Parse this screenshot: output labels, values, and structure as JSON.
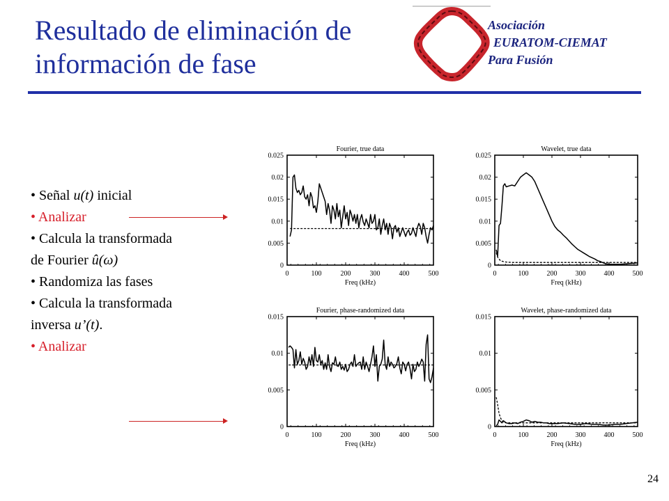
{
  "slide": {
    "title_line1": "Resultado de eliminación de",
    "title_line2": "información de fase",
    "org_line1": "Asociación",
    "org_line2": "EURATOM-CIEMAT",
    "org_line3": "Para Fusión",
    "page_number": "24",
    "colors": {
      "title": "#1f2f9c",
      "rule": "#1f2fa8",
      "highlight": "#d61f2a",
      "logo": "#c8252c"
    },
    "logo_icon": "euratom-ciemat-logo-icon",
    "arrow_icon": "right-arrow-icon"
  },
  "bullets": [
    {
      "pre": "• Señal ",
      "em": "u(t)",
      "post": " inicial",
      "red": false
    },
    {
      "pre": "• Analizar",
      "em": "",
      "post": "",
      "red": true
    },
    {
      "pre": "• Calcula la transformada de Fourier ",
      "em": "û(ω)",
      "post": "",
      "red": false
    },
    {
      "pre": "• Randomiza las fases",
      "em": "",
      "post": "",
      "red": false
    },
    {
      "pre": "• Calcula la transformada inversa ",
      "em": "u’(t)",
      "post": ".",
      "red": false
    },
    {
      "pre": "• Analizar",
      "em": "",
      "post": "",
      "red": true
    }
  ],
  "chart_data": [
    {
      "type": "line",
      "title": "Fourier, true data",
      "xlabel": "Freq (kHz)",
      "ylabel": "",
      "xlim": [
        0,
        500
      ],
      "ylim": [
        0,
        0.025
      ],
      "xticks": [
        "0",
        "100",
        "200",
        "300",
        "400",
        "500"
      ],
      "yticks": [
        "0",
        "0.005",
        "0.01",
        "0.015",
        "0.02",
        "0.025"
      ],
      "grid": false,
      "series": [
        {
          "style": "solid",
          "x": [
            10,
            15,
            20,
            25,
            30,
            35,
            40,
            45,
            50,
            55,
            60,
            65,
            70,
            75,
            80,
            85,
            90,
            95,
            100,
            105,
            110,
            115,
            120,
            125,
            130,
            135,
            140,
            145,
            150,
            155,
            160,
            165,
            170,
            175,
            180,
            185,
            190,
            195,
            200,
            205,
            210,
            215,
            220,
            225,
            230,
            235,
            240,
            245,
            250,
            255,
            260,
            265,
            270,
            275,
            280,
            285,
            290,
            295,
            300,
            305,
            310,
            315,
            320,
            325,
            330,
            335,
            340,
            345,
            350,
            355,
            360,
            365,
            370,
            375,
            380,
            385,
            390,
            395,
            400,
            405,
            410,
            415,
            420,
            425,
            430,
            435,
            440,
            445,
            450,
            455,
            460,
            465,
            470,
            475,
            480,
            485,
            490,
            495,
            500
          ],
          "y": [
            0.0065,
            0.008,
            0.02,
            0.0205,
            0.0175,
            0.0165,
            0.017,
            0.016,
            0.0165,
            0.018,
            0.0155,
            0.015,
            0.016,
            0.0135,
            0.0165,
            0.0155,
            0.013,
            0.0135,
            0.012,
            0.0145,
            0.0185,
            0.0175,
            0.0165,
            0.0155,
            0.0145,
            0.0115,
            0.014,
            0.0125,
            0.0095,
            0.0135,
            0.0125,
            0.0105,
            0.014,
            0.011,
            0.0125,
            0.0085,
            0.011,
            0.0135,
            0.0105,
            0.012,
            0.009,
            0.0125,
            0.0115,
            0.01,
            0.0115,
            0.0095,
            0.0115,
            0.0085,
            0.0105,
            0.0115,
            0.0098,
            0.009,
            0.0105,
            0.0095,
            0.0085,
            0.0115,
            0.0095,
            0.01,
            0.0115,
            0.008,
            0.0085,
            0.0105,
            0.007,
            0.009,
            0.0105,
            0.008,
            0.0095,
            0.007,
            0.0095,
            0.0085,
            0.006,
            0.0085,
            0.009,
            0.0075,
            0.0085,
            0.0065,
            0.0075,
            0.0085,
            0.0075,
            0.0065,
            0.0075,
            0.008,
            0.0068,
            0.0072,
            0.0085,
            0.0075,
            0.0065,
            0.0085,
            0.0095,
            0.0088,
            0.007,
            0.0095,
            0.0085,
            0.0065,
            0.005,
            0.007,
            0.0085,
            0.008,
            0.009
          ]
        },
        {
          "style": "dashed",
          "x": [
            10,
            500
          ],
          "y": [
            0.0083,
            0.0083
          ]
        }
      ]
    },
    {
      "type": "line",
      "title": "Wavelet, true data",
      "xlabel": "Freq (kHz)",
      "ylabel": "",
      "xlim": [
        0,
        500
      ],
      "ylim": [
        0,
        0.025
      ],
      "xticks": [
        "0",
        "100",
        "200",
        "300",
        "400",
        "500"
      ],
      "yticks": [
        "0",
        "0.005",
        "0.01",
        "0.015",
        "0.02",
        "0.025"
      ],
      "grid": false,
      "series": [
        {
          "style": "solid",
          "x": [
            5,
            10,
            15,
            20,
            25,
            30,
            35,
            40,
            50,
            60,
            70,
            80,
            90,
            100,
            110,
            120,
            130,
            140,
            150,
            160,
            170,
            180,
            190,
            200,
            210,
            220,
            230,
            240,
            250,
            260,
            270,
            280,
            290,
            300,
            310,
            320,
            330,
            340,
            350,
            360,
            370,
            380,
            390,
            400,
            420,
            440,
            460,
            480,
            500
          ],
          "y": [
            0.0035,
            0.002,
            0.009,
            0.0095,
            0.0135,
            0.018,
            0.0185,
            0.0178,
            0.018,
            0.0182,
            0.018,
            0.019,
            0.02,
            0.0205,
            0.021,
            0.0205,
            0.02,
            0.019,
            0.0175,
            0.016,
            0.0145,
            0.013,
            0.0115,
            0.01,
            0.0088,
            0.008,
            0.0075,
            0.0068,
            0.0062,
            0.0055,
            0.0048,
            0.0042,
            0.0036,
            0.0032,
            0.0028,
            0.0024,
            0.002,
            0.0017,
            0.0014,
            0.001,
            0.0008,
            0.0005,
            0.0003,
            0.0002,
            0.0002,
            0.0002,
            0.0003,
            0.0004,
            0.0005
          ]
        },
        {
          "style": "dashed",
          "x": [
            5,
            10,
            15,
            20,
            30,
            40,
            60,
            100,
            200,
            300,
            400,
            500
          ],
          "y": [
            0.0028,
            0.0018,
            0.0014,
            0.001,
            0.0008,
            0.0007,
            0.0006,
            0.0006,
            0.0006,
            0.0006,
            0.0006,
            0.0006
          ]
        }
      ]
    },
    {
      "type": "line",
      "title": "Fourier, phase-randomized data",
      "xlabel": "Freq (kHz)",
      "ylabel": "",
      "xlim": [
        0,
        500
      ],
      "ylim": [
        0,
        0.015
      ],
      "xticks": [
        "0",
        "100",
        "200",
        "300",
        "400",
        "500"
      ],
      "yticks": [
        "0",
        "0.005",
        "0.01",
        "0.015"
      ],
      "grid": false,
      "series": [
        {
          "style": "solid",
          "x": [
            5,
            10,
            15,
            20,
            25,
            30,
            35,
            40,
            45,
            50,
            55,
            60,
            65,
            70,
            75,
            80,
            85,
            90,
            95,
            100,
            105,
            110,
            115,
            120,
            125,
            130,
            135,
            140,
            145,
            150,
            155,
            160,
            165,
            170,
            175,
            180,
            185,
            190,
            195,
            200,
            205,
            210,
            215,
            220,
            225,
            230,
            235,
            240,
            245,
            250,
            255,
            260,
            265,
            270,
            275,
            280,
            285,
            290,
            295,
            300,
            305,
            310,
            315,
            320,
            325,
            330,
            335,
            340,
            345,
            350,
            355,
            360,
            365,
            370,
            375,
            380,
            385,
            390,
            395,
            400,
            405,
            410,
            415,
            420,
            425,
            430,
            435,
            440,
            445,
            450,
            455,
            460,
            465,
            470,
            475,
            480,
            485,
            490,
            495,
            500
          ],
          "y": [
            0.0108,
            0.011,
            0.0108,
            0.0105,
            0.008,
            0.0105,
            0.0085,
            0.009,
            0.0102,
            0.0085,
            0.0093,
            0.0088,
            0.0078,
            0.0082,
            0.0095,
            0.0085,
            0.0098,
            0.0082,
            0.0108,
            0.009,
            0.0088,
            0.0098,
            0.0085,
            0.009,
            0.0078,
            0.0087,
            0.0078,
            0.0098,
            0.0082,
            0.0075,
            0.0087,
            0.0085,
            0.0095,
            0.0083,
            0.0082,
            0.0088,
            0.0078,
            0.0082,
            0.0077,
            0.0085,
            0.0075,
            0.0078,
            0.0085,
            0.0088,
            0.0082,
            0.0098,
            0.0082,
            0.0085,
            0.0087,
            0.0088,
            0.0078,
            0.0095,
            0.0078,
            0.0088,
            0.0082,
            0.0075,
            0.0085,
            0.0095,
            0.011,
            0.0082,
            0.0098,
            0.0062,
            0.0082,
            0.0085,
            0.0092,
            0.0118,
            0.0085,
            0.0078,
            0.0095,
            0.0082,
            0.0088,
            0.0085,
            0.008,
            0.0082,
            0.0086,
            0.0095,
            0.008,
            0.0072,
            0.0088,
            0.0085,
            0.0076,
            0.0085,
            0.0088,
            0.0079,
            0.0065,
            0.0085,
            0.0075,
            0.0078,
            0.0088,
            0.0082,
            0.0086,
            0.0092,
            0.0088,
            0.0062,
            0.0112,
            0.0125,
            0.0065,
            0.006,
            0.0068,
            0.008
          ]
        },
        {
          "style": "dashed",
          "x": [
            5,
            500
          ],
          "y": [
            0.0084,
            0.0084
          ]
        }
      ]
    },
    {
      "type": "line",
      "title": "Wavelet, phase-randomized data",
      "xlabel": "Freq (kHz)",
      "ylabel": "",
      "xlim": [
        0,
        500
      ],
      "ylim": [
        0,
        0.015
      ],
      "xticks": [
        "0",
        "100",
        "200",
        "300",
        "400",
        "500"
      ],
      "yticks": [
        "0",
        "0.005",
        "0.01",
        "0.015"
      ],
      "grid": false,
      "series": [
        {
          "style": "solid",
          "x": [
            5,
            10,
            15,
            20,
            25,
            30,
            40,
            50,
            60,
            70,
            80,
            90,
            100,
            110,
            120,
            130,
            140,
            150,
            160,
            170,
            180,
            190,
            200,
            220,
            240,
            260,
            280,
            300,
            320,
            340,
            360,
            380,
            400,
            420,
            440,
            460,
            480,
            500
          ],
          "y": [
            0.0001,
            0.0003,
            0.0009,
            0.0007,
            0.0005,
            0.0008,
            0.0005,
            0.0004,
            0.0004,
            0.0005,
            0.0004,
            0.0006,
            0.0007,
            0.0009,
            0.0008,
            0.0006,
            0.0007,
            0.0006,
            0.0006,
            0.0005,
            0.0005,
            0.0004,
            0.0004,
            0.0004,
            0.0005,
            0.0004,
            0.0003,
            0.0003,
            0.0004,
            0.0003,
            0.0003,
            0.0002,
            0.0002,
            0.0003,
            0.0003,
            0.0004,
            0.0005,
            0.0006
          ]
        },
        {
          "style": "dashed",
          "x": [
            5,
            10,
            15,
            20,
            25,
            30,
            40,
            50,
            70,
            100,
            150,
            200,
            300,
            400,
            500
          ],
          "y": [
            0.004,
            0.003,
            0.0018,
            0.0012,
            0.0008,
            0.0006,
            0.0005,
            0.0005,
            0.0005,
            0.0005,
            0.0005,
            0.0005,
            0.0005,
            0.0005,
            0.0005
          ]
        }
      ]
    }
  ]
}
